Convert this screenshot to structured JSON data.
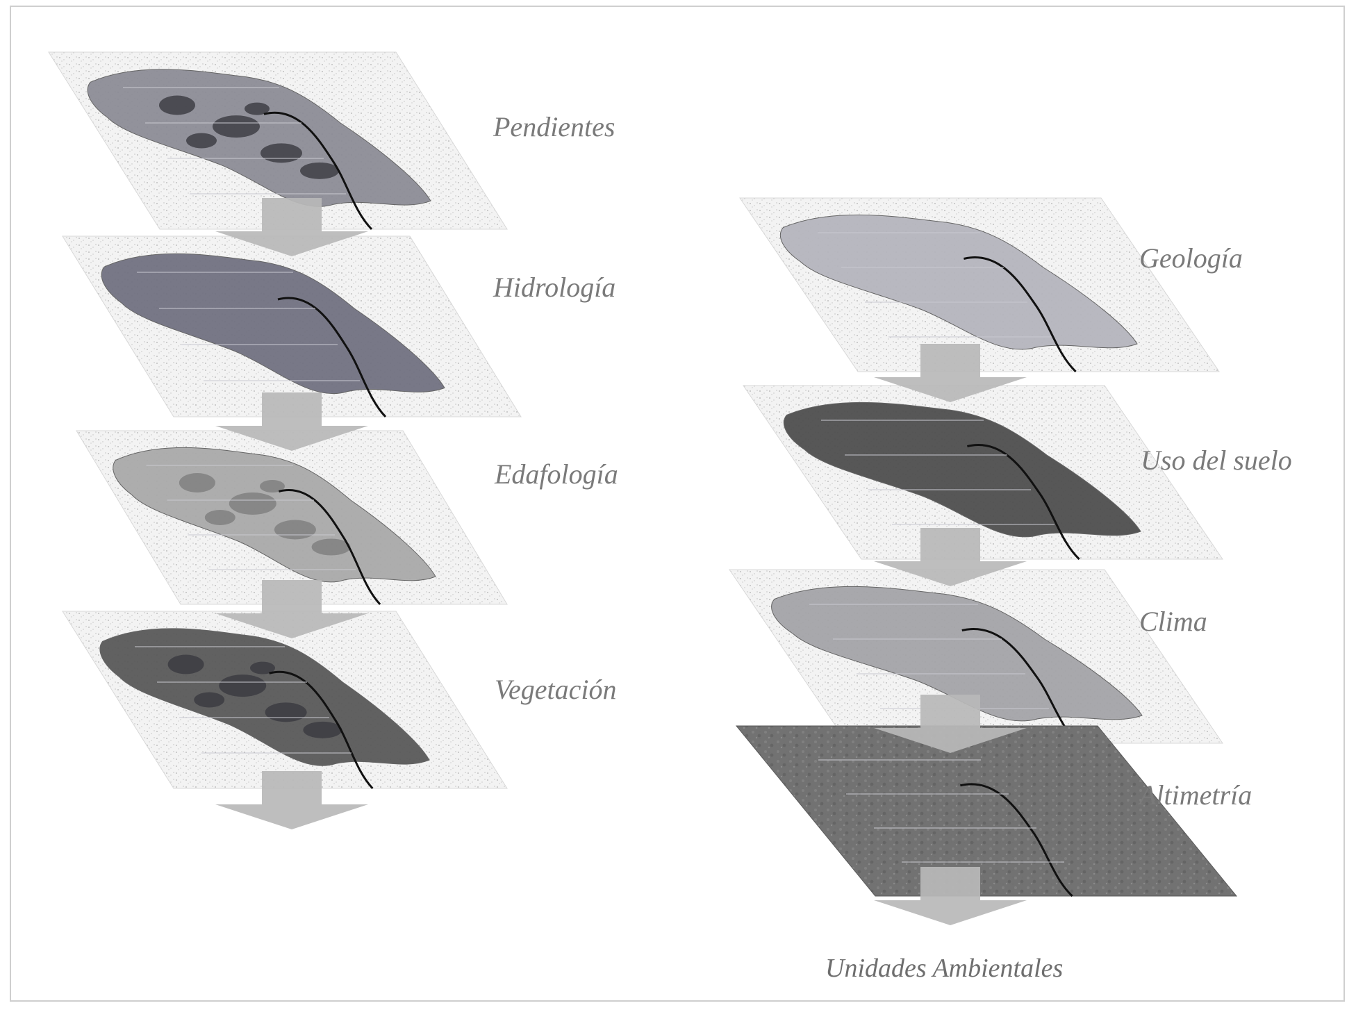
{
  "diagram": {
    "left_stack": {
      "layers": [
        {
          "label": "Pendientes",
          "fill": "#8a8a94",
          "pattern": "patchy"
        },
        {
          "label": "Hidrología",
          "fill": "#6e6e7e",
          "pattern": "solid"
        },
        {
          "label": "Edafología",
          "fill": "#a8a8a8",
          "pattern": "zones"
        },
        {
          "label": "Vegetación",
          "fill": "#555555",
          "pattern": "patchy-dark"
        }
      ]
    },
    "right_stack": {
      "layers": [
        {
          "label": "Geología",
          "fill": "#b4b4bc",
          "pattern": "light"
        },
        {
          "label": "Uso del suelo",
          "fill": "#4a4a4a",
          "pattern": "dark"
        },
        {
          "label": "Clima",
          "fill": "#a2a2a6",
          "pattern": "light"
        },
        {
          "label": "Altimetría",
          "fill": "#6a6a6a",
          "pattern": "relief"
        }
      ]
    },
    "result_label": "Unidades Ambientales",
    "arrow_color": "#b8b8b8",
    "frame_color": "#cfcfcf"
  }
}
